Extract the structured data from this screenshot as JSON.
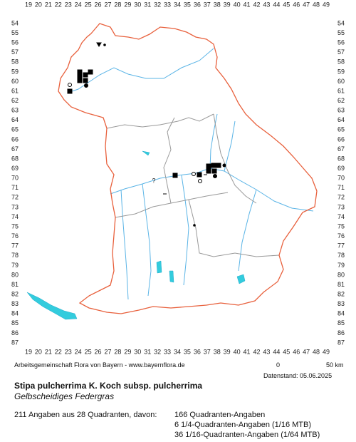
{
  "map": {
    "columns": [
      19,
      20,
      21,
      22,
      23,
      24,
      25,
      26,
      27,
      28,
      29,
      30,
      31,
      32,
      33,
      34,
      35,
      36,
      37,
      38,
      39,
      40,
      41,
      42,
      43,
      44,
      45,
      46,
      47,
      48,
      49
    ],
    "rows": [
      54,
      55,
      56,
      57,
      58,
      59,
      60,
      61,
      62,
      63,
      64,
      65,
      66,
      67,
      68,
      69,
      70,
      71,
      72,
      73,
      74,
      75,
      76,
      77,
      78,
      79,
      80,
      81,
      82,
      83,
      84,
      85,
      86,
      87
    ],
    "credit": "Arbeitsgemeinschaft Flora von Bayern - www.bayernflora.de",
    "scale_start": "0",
    "scale_end": "50 km",
    "date": "Datenstand: 05.06.2025"
  },
  "species": {
    "title": "Stipa pulcherrima K. Koch subsp. pulcherrima",
    "subtitle": "Gelbscheidiges Federgras"
  },
  "stats": {
    "summary": "211 Angaben aus 28 Quadranten, davon:",
    "lines": [
      "166 Quadranten-Angaben",
      "6 1/4-Quadranten-Angaben (1/16 MTB)",
      "36 1/16-Quadranten-Angaben (1/64 MTB)"
    ]
  }
}
